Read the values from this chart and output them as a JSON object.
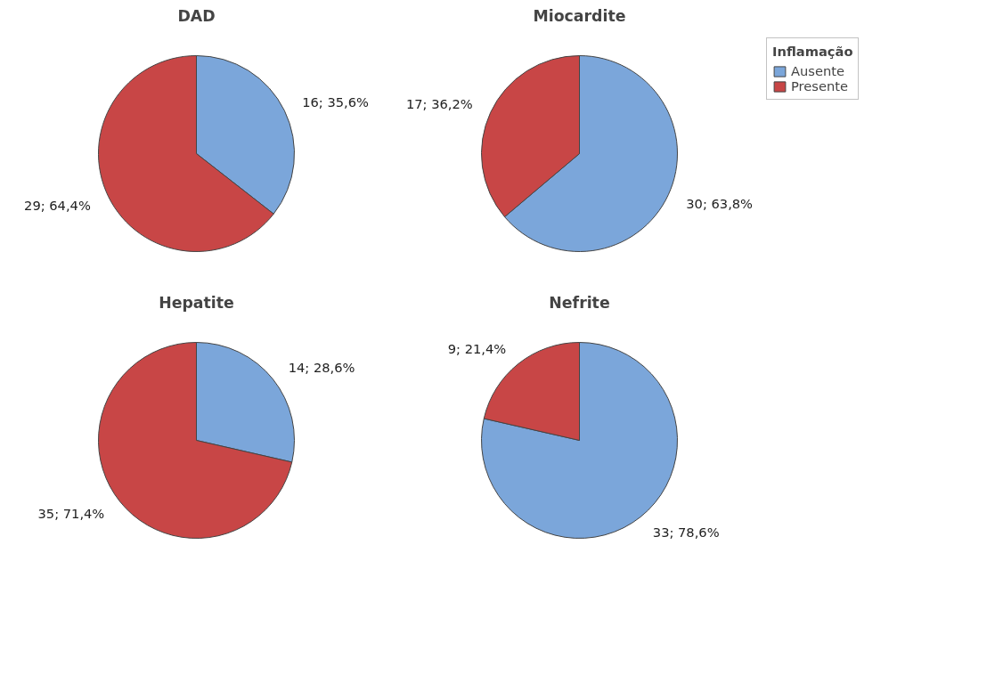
{
  "chart_data": [
    {
      "type": "pie",
      "title": "DAD",
      "values": [
        16,
        29
      ],
      "colors": [
        "#7ba6da",
        "#c84646"
      ],
      "value_labels": [
        "16; 35,6%",
        "29; 64,4%"
      ],
      "legend": false
    },
    {
      "type": "pie",
      "title": "Miocardite",
      "categories": [
        "Ausente",
        "Presente"
      ],
      "values": [
        30,
        17
      ],
      "colors": [
        "#7ba6da",
        "#c84646"
      ],
      "value_labels": [
        "30; 63,8%",
        "17; 36,2%"
      ],
      "legend": "right",
      "legend_title": "Inflamação"
    },
    {
      "type": "pie",
      "title": "Hepatite",
      "values": [
        14,
        35
      ],
      "colors": [
        "#7ba6da",
        "#c84646"
      ],
      "value_labels": [
        "14; 28,6%",
        "35; 71,4%"
      ],
      "legend": false
    },
    {
      "type": "pie",
      "title": "Nefrite",
      "values": [
        33,
        9
      ],
      "colors": [
        "#7ba6da",
        "#c84646"
      ],
      "value_labels": [
        "33; 78,6%",
        "9; 21,4%"
      ],
      "legend": false
    }
  ]
}
